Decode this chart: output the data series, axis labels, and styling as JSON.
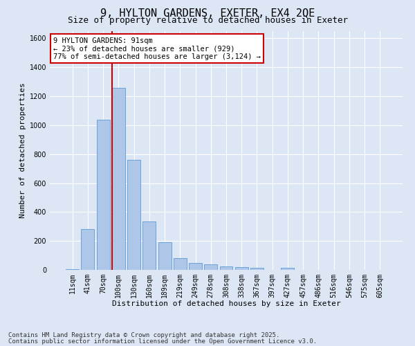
{
  "title_line1": "9, HYLTON GARDENS, EXETER, EX4 2QE",
  "title_line2": "Size of property relative to detached houses in Exeter",
  "xlabel": "Distribution of detached houses by size in Exeter",
  "ylabel": "Number of detached properties",
  "bar_color": "#aec6e8",
  "bar_edge_color": "#5b9bd5",
  "background_color": "#dce6f5",
  "grid_color": "#ffffff",
  "categories": [
    "11sqm",
    "41sqm",
    "70sqm",
    "100sqm",
    "130sqm",
    "160sqm",
    "189sqm",
    "219sqm",
    "249sqm",
    "278sqm",
    "308sqm",
    "338sqm",
    "367sqm",
    "397sqm",
    "427sqm",
    "457sqm",
    "486sqm",
    "516sqm",
    "546sqm",
    "575sqm",
    "605sqm"
  ],
  "values": [
    5,
    280,
    1040,
    1260,
    760,
    335,
    190,
    80,
    50,
    38,
    25,
    18,
    12,
    0,
    12,
    0,
    0,
    0,
    0,
    0,
    0
  ],
  "ylim": [
    0,
    1650
  ],
  "yticks": [
    0,
    200,
    400,
    600,
    800,
    1000,
    1200,
    1400,
    1600
  ],
  "annotation_text": "9 HYLTON GARDENS: 91sqm\n← 23% of detached houses are smaller (929)\n77% of semi-detached houses are larger (3,124) →",
  "annotation_box_color": "#ffffff",
  "annotation_box_edge": "#cc0000",
  "vline_color": "#cc0000",
  "footer_line1": "Contains HM Land Registry data © Crown copyright and database right 2025.",
  "footer_line2": "Contains public sector information licensed under the Open Government Licence v3.0.",
  "title_fontsize": 11,
  "subtitle_fontsize": 9,
  "axis_label_fontsize": 8,
  "tick_fontsize": 7,
  "annotation_fontsize": 7.5,
  "footer_fontsize": 6.5
}
